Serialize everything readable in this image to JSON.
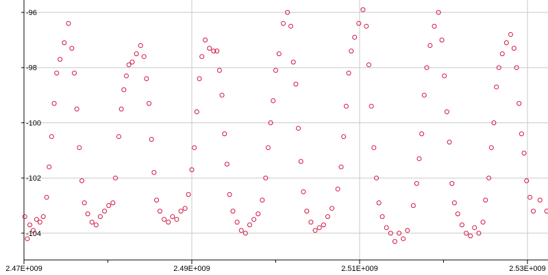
{
  "chart_data": {
    "type": "scatter",
    "color": "#d0103a",
    "grid": true,
    "xlim": [
      2470000000.0,
      2532450000.0
    ],
    "ylim": [
      -104.97,
      -95.55
    ],
    "xticks": [
      {
        "value": 2470000000.0,
        "label": "2.47E+009"
      },
      {
        "value": 2490000000.0,
        "label": "2.49E+009"
      },
      {
        "value": 2510000000.0,
        "label": "2.51E+009"
      },
      {
        "value": 2530000000.0,
        "label": "2.53E+009"
      }
    ],
    "xminorticks": [
      2480000000.0,
      2500000000.0,
      2520000000.0
    ],
    "yticks": [
      -104,
      -102,
      -100,
      -98,
      -96
    ],
    "x": [
      2470100000.0,
      2470400000.0,
      2470700000.0,
      2471100000.0,
      2471500000.0,
      2471900000.0,
      2472300000.0,
      2472700000.0,
      2473000000.0,
      2473300000.0,
      2473600000.0,
      2473900000.0,
      2474300000.0,
      2474800000.0,
      2475300000.0,
      2475700000.0,
      2476000000.0,
      2476300000.0,
      2476600000.0,
      2476900000.0,
      2477200000.0,
      2477600000.0,
      2478100000.0,
      2478600000.0,
      2479100000.0,
      2479600000.0,
      2480100000.0,
      2480600000.0,
      2480900000.0,
      2481300000.0,
      2481600000.0,
      2481900000.0,
      2482200000.0,
      2482500000.0,
      2482900000.0,
      2483400000.0,
      2483900000.0,
      2484300000.0,
      2484600000.0,
      2484900000.0,
      2485200000.0,
      2485500000.0,
      2485800000.0,
      2486200000.0,
      2486700000.0,
      2487200000.0,
      2487700000.0,
      2488200000.0,
      2488700000.0,
      2489200000.0,
      2489600000.0,
      2490000000.0,
      2490300000.0,
      2490600000.0,
      2490900000.0,
      2491200000.0,
      2491600000.0,
      2492100000.0,
      2492600000.0,
      2493000000.0,
      2493300000.0,
      2493600000.0,
      2493900000.0,
      2494200000.0,
      2494500000.0,
      2494900000.0,
      2495400000.0,
      2495900000.0,
      2496400000.0,
      2496900000.0,
      2497400000.0,
      2497900000.0,
      2498400000.0,
      2498800000.0,
      2499100000.0,
      2499400000.0,
      2499700000.0,
      2500000000.0,
      2500400000.0,
      2500900000.0,
      2501400000.0,
      2501800000.0,
      2502100000.0,
      2502400000.0,
      2502700000.0,
      2503000000.0,
      2503300000.0,
      2503700000.0,
      2504200000.0,
      2504700000.0,
      2505200000.0,
      2505700000.0,
      2506200000.0,
      2506700000.0,
      2507400000.0,
      2507800000.0,
      2508100000.0,
      2508400000.0,
      2508700000.0,
      2509000000.0,
      2509400000.0,
      2509900000.0,
      2510400000.0,
      2510800000.0,
      2511100000.0,
      2511400000.0,
      2511700000.0,
      2512000000.0,
      2512300000.0,
      2512700000.0,
      2513200000.0,
      2513700000.0,
      2514200000.0,
      2514700000.0,
      2515200000.0,
      2515700000.0,
      2516400000.0,
      2516800000.0,
      2517100000.0,
      2517400000.0,
      2517700000.0,
      2518000000.0,
      2518400000.0,
      2518900000.0,
      2519400000.0,
      2519800000.0,
      2520100000.0,
      2520400000.0,
      2520700000.0,
      2521000000.0,
      2521300000.0,
      2521700000.0,
      2522200000.0,
      2522700000.0,
      2523200000.0,
      2523700000.0,
      2524200000.0,
      2524700000.0,
      2525000000.0,
      2525400000.0,
      2525700000.0,
      2526000000.0,
      2526300000.0,
      2526600000.0,
      2527000000.0,
      2527500000.0,
      2528000000.0,
      2528400000.0,
      2528700000.0,
      2529000000.0,
      2529300000.0,
      2529600000.0,
      2529900000.0,
      2530300000.0,
      2530700000.0,
      2531500000.0,
      2532300000.0
    ],
    "values": [
      -103.4,
      -104.2,
      -103.7,
      -103.9,
      -103.5,
      -103.6,
      -103.4,
      -102.7,
      -101.6,
      -100.5,
      -99.3,
      -98.2,
      -97.7,
      -97.1,
      -96.4,
      -97.3,
      -98.2,
      -99.5,
      -100.9,
      -102.1,
      -102.9,
      -103.3,
      -103.6,
      -103.7,
      -103.4,
      -103.2,
      -103.0,
      -102.9,
      -102.0,
      -100.5,
      -99.5,
      -98.8,
      -98.3,
      -97.9,
      -97.8,
      -97.5,
      -97.2,
      -97.6,
      -98.4,
      -99.3,
      -100.6,
      -101.8,
      -102.8,
      -103.2,
      -103.5,
      -103.6,
      -103.4,
      -103.5,
      -103.2,
      -103.1,
      -102.6,
      -101.7,
      -100.9,
      -99.6,
      -98.4,
      -97.6,
      -97.0,
      -97.3,
      -97.4,
      -97.4,
      -98.1,
      -99.0,
      -100.4,
      -101.5,
      -102.6,
      -103.2,
      -103.6,
      -103.9,
      -104.0,
      -103.7,
      -103.5,
      -103.3,
      -102.8,
      -102.0,
      -100.9,
      -100.0,
      -99.2,
      -98.1,
      -97.5,
      -96.4,
      -96.0,
      -96.5,
      -97.8,
      -98.6,
      -100.2,
      -101.4,
      -102.5,
      -103.2,
      -103.6,
      -103.9,
      -103.8,
      -103.7,
      -103.4,
      -103.1,
      -102.4,
      -101.6,
      -100.5,
      -99.4,
      -98.2,
      -97.4,
      -96.9,
      -96.4,
      -95.9,
      -96.5,
      -97.9,
      -99.4,
      -100.9,
      -102.0,
      -102.9,
      -103.4,
      -103.8,
      -104.0,
      -104.3,
      -104.0,
      -104.2,
      -103.9,
      -103.0,
      -102.2,
      -101.3,
      -100.4,
      -99.0,
      -98.0,
      -97.2,
      -96.5,
      -96.0,
      -97.0,
      -98.3,
      -99.6,
      -100.7,
      -102.2,
      -102.9,
      -103.3,
      -103.7,
      -104.0,
      -104.1,
      -103.8,
      -104.0,
      -103.6,
      -102.8,
      -102.0,
      -100.9,
      -100.0,
      -98.7,
      -98.0,
      -97.5,
      -97.1,
      -96.8,
      -97.3,
      -98.0,
      -99.3,
      -100.4,
      -101.1,
      -102.1,
      -102.7,
      -103.2,
      -102.8,
      -103.2
    ]
  }
}
